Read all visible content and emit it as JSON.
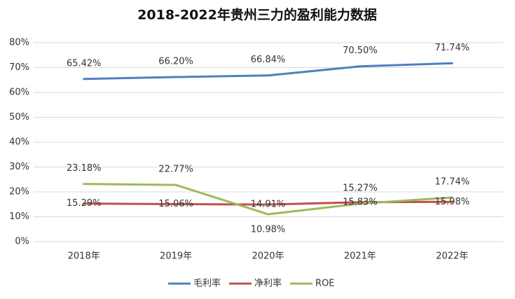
{
  "chart_data": {
    "type": "line",
    "title": "2018-2022年贵州三力的盈利能力数据",
    "categories": [
      "2018年",
      "2019年",
      "2020年",
      "2021年",
      "2022年"
    ],
    "series": [
      {
        "name": "毛利率",
        "color": "#4f7fc0",
        "values": [
          65.42,
          66.2,
          66.84,
          70.5,
          71.74
        ],
        "value_labels": [
          "65.42%",
          "66.20%",
          "66.84%",
          "70.50%",
          "71.74%"
        ]
      },
      {
        "name": "净利率",
        "color": "#c0504d",
        "values": [
          15.29,
          15.06,
          14.91,
          15.83,
          15.98
        ],
        "value_labels": [
          "15.29%",
          "15.06%",
          "14.91%",
          "15.83%",
          "15.98%"
        ]
      },
      {
        "name": "ROE",
        "color": "#9bbb59",
        "values": [
          23.18,
          22.77,
          10.98,
          15.27,
          17.74
        ],
        "value_labels": [
          "23.18%",
          "22.77%",
          "10.98%",
          "15.27%",
          "17.74%"
        ]
      }
    ],
    "ylim": [
      0,
      80
    ],
    "yticks": [
      {
        "value": 0,
        "label": "0%"
      },
      {
        "value": 10,
        "label": "10%"
      },
      {
        "value": 20,
        "label": "20%"
      },
      {
        "value": 30,
        "label": "30%"
      },
      {
        "value": 40,
        "label": "40%"
      },
      {
        "value": 50,
        "label": "50%"
      },
      {
        "value": 60,
        "label": "60%"
      },
      {
        "value": 70,
        "label": "70%"
      },
      {
        "value": 80,
        "label": "80%"
      }
    ],
    "grid": true,
    "legend": "bottom"
  }
}
